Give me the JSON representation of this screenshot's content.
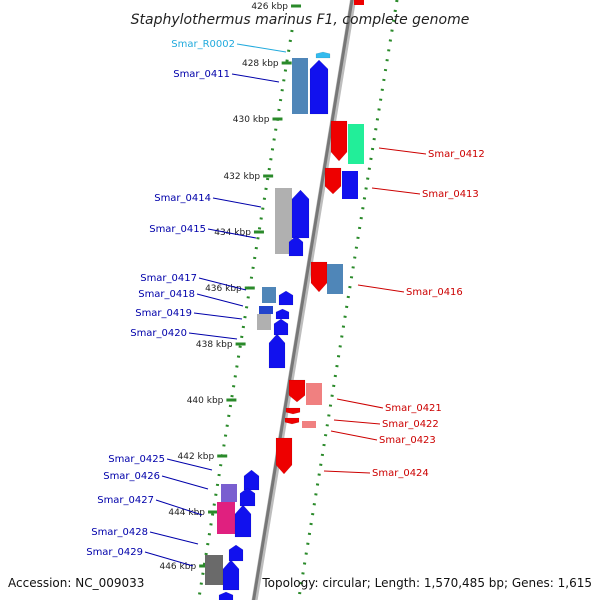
{
  "title": "Staphylothermus marinus F1, complete genome",
  "footer": {
    "accession": "Accession: NC_009033",
    "summary": "Topology: circular; Length: 1,570,485 bp; Genes: 1,615"
  },
  "colors": {
    "forward_strand": "#0000ee",
    "reverse_strand": "#ee0000",
    "rna_label": "#22aadd",
    "track_dots": "#2a8a2a",
    "backbone": "#777777"
  },
  "kbp_ticks": [
    "426 kbp",
    "428 kbp",
    "430 kbp",
    "432 kbp",
    "434 kbp",
    "436 kbp",
    "438 kbp",
    "440 kbp",
    "442 kbp",
    "444 kbp",
    "446 kbp"
  ],
  "genes": [
    {
      "name": "Smar_R0002",
      "strand": "+",
      "color": "#22aadd"
    },
    {
      "name": "Smar_0411",
      "strand": "+",
      "color": "#0000aa"
    },
    {
      "name": "Smar_0412",
      "strand": "-",
      "color": "#cc0000"
    },
    {
      "name": "Smar_0413",
      "strand": "-",
      "color": "#cc0000"
    },
    {
      "name": "Smar_0414",
      "strand": "+",
      "color": "#0000aa"
    },
    {
      "name": "Smar_0415",
      "strand": "+",
      "color": "#0000aa"
    },
    {
      "name": "Smar_0416",
      "strand": "-",
      "color": "#cc0000"
    },
    {
      "name": "Smar_0417",
      "strand": "+",
      "color": "#0000aa"
    },
    {
      "name": "Smar_0418",
      "strand": "+",
      "color": "#0000aa"
    },
    {
      "name": "Smar_0419",
      "strand": "+",
      "color": "#0000aa"
    },
    {
      "name": "Smar_0420",
      "strand": "+",
      "color": "#0000aa"
    },
    {
      "name": "Smar_0421",
      "strand": "-",
      "color": "#cc0000"
    },
    {
      "name": "Smar_0422",
      "strand": "-",
      "color": "#cc0000"
    },
    {
      "name": "Smar_0423",
      "strand": "-",
      "color": "#cc0000"
    },
    {
      "name": "Smar_0424",
      "strand": "-",
      "color": "#cc0000"
    },
    {
      "name": "Smar_0425",
      "strand": "+",
      "color": "#0000aa"
    },
    {
      "name": "Smar_0426",
      "strand": "+",
      "color": "#0000aa"
    },
    {
      "name": "Smar_0427",
      "strand": "+",
      "color": "#0000aa"
    },
    {
      "name": "Smar_0428",
      "strand": "+",
      "color": "#0000aa"
    },
    {
      "name": "Smar_0429",
      "strand": "+",
      "color": "#0000aa"
    }
  ]
}
